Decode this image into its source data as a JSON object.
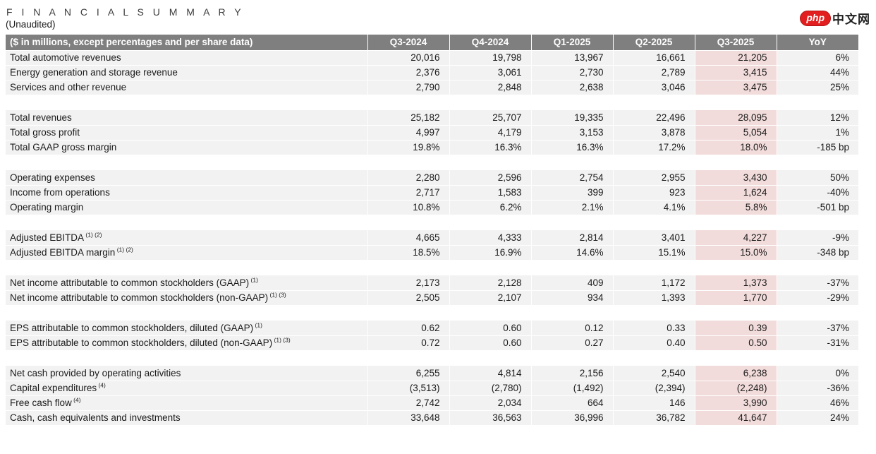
{
  "page": {
    "title": "F I N A N C I A L   S U M M A R Y",
    "subtitle": "(Unaudited)"
  },
  "logo": {
    "badge": "php",
    "text": "中文网",
    "badge_color": "#e31e1e"
  },
  "table": {
    "header": {
      "label": "($ in millions, except percentages and per share data)",
      "columns": [
        "Q3-2024",
        "Q4-2024",
        "Q1-2025",
        "Q2-2025",
        "Q3-2025",
        "YoY"
      ]
    },
    "highlight_column": "Q3-2025",
    "colors": {
      "header_bg": "#7f7f7f",
      "header_text": "#ffffff",
      "row_bg": "#f2f2f2",
      "highlight_bg": "#f2dcdb"
    },
    "sections": [
      {
        "rows": [
          {
            "label": "Total automotive revenues",
            "sup": "",
            "values": [
              "20,016",
              "19,798",
              "13,967",
              "16,661",
              "21,205",
              "6%"
            ]
          },
          {
            "label": "Energy generation and storage revenue",
            "sup": "",
            "values": [
              "2,376",
              "3,061",
              "2,730",
              "2,789",
              "3,415",
              "44%"
            ]
          },
          {
            "label": "Services and other revenue",
            "sup": "",
            "values": [
              "2,790",
              "2,848",
              "2,638",
              "3,046",
              "3,475",
              "25%"
            ]
          }
        ]
      },
      {
        "rows": [
          {
            "label": "Total revenues",
            "sup": "",
            "values": [
              "25,182",
              "25,707",
              "19,335",
              "22,496",
              "28,095",
              "12%"
            ]
          },
          {
            "label": "Total gross profit",
            "sup": "",
            "values": [
              "4,997",
              "4,179",
              "3,153",
              "3,878",
              "5,054",
              "1%"
            ]
          },
          {
            "label": "Total GAAP gross margin",
            "sup": "",
            "values": [
              "19.8%",
              "16.3%",
              "16.3%",
              "17.2%",
              "18.0%",
              "-185 bp"
            ]
          }
        ]
      },
      {
        "rows": [
          {
            "label": "Operating expenses",
            "sup": "",
            "values": [
              "2,280",
              "2,596",
              "2,754",
              "2,955",
              "3,430",
              "50%"
            ]
          },
          {
            "label": "Income from operations",
            "sup": "",
            "values": [
              "2,717",
              "1,583",
              "399",
              "923",
              "1,624",
              "-40%"
            ]
          },
          {
            "label": "Operating margin",
            "sup": "",
            "values": [
              "10.8%",
              "6.2%",
              "2.1%",
              "4.1%",
              "5.8%",
              "-501 bp"
            ]
          }
        ]
      },
      {
        "rows": [
          {
            "label": "Adjusted EBITDA",
            "sup": "(1) (2)",
            "values": [
              "4,665",
              "4,333",
              "2,814",
              "3,401",
              "4,227",
              "-9%"
            ]
          },
          {
            "label": "Adjusted EBITDA margin",
            "sup": "(1) (2)",
            "values": [
              "18.5%",
              "16.9%",
              "14.6%",
              "15.1%",
              "15.0%",
              "-348 bp"
            ]
          }
        ]
      },
      {
        "rows": [
          {
            "label": "Net income attributable to common stockholders (GAAP)",
            "sup": "(1)",
            "values": [
              "2,173",
              "2,128",
              "409",
              "1,172",
              "1,373",
              "-37%"
            ]
          },
          {
            "label": "Net income attributable to common stockholders (non-GAAP)",
            "sup": "(1) (3)",
            "values": [
              "2,505",
              "2,107",
              "934",
              "1,393",
              "1,770",
              "-29%"
            ]
          }
        ]
      },
      {
        "rows": [
          {
            "label": "EPS attributable to common stockholders, diluted (GAAP)",
            "sup": "(1)",
            "values": [
              "0.62",
              "0.60",
              "0.12",
              "0.33",
              "0.39",
              "-37%"
            ]
          },
          {
            "label": "EPS attributable to common stockholders, diluted (non-GAAP)",
            "sup": "(1) (3)",
            "values": [
              "0.72",
              "0.60",
              "0.27",
              "0.40",
              "0.50",
              "-31%"
            ]
          }
        ]
      },
      {
        "rows": [
          {
            "label": "Net cash provided by operating activities",
            "sup": "",
            "values": [
              "6,255",
              "4,814",
              "2,156",
              "2,540",
              "6,238",
              "0%"
            ]
          },
          {
            "label": "Capital expenditures",
            "sup": "(4)",
            "values": [
              "(3,513)",
              "(2,780)",
              "(1,492)",
              "(2,394)",
              "(2,248)",
              "-36%"
            ]
          },
          {
            "label": "Free cash flow",
            "sup": "(4)",
            "values": [
              "2,742",
              "2,034",
              "664",
              "146",
              "3,990",
              "46%"
            ]
          },
          {
            "label": "Cash, cash equivalents and investments",
            "sup": "",
            "values": [
              "33,648",
              "36,563",
              "36,996",
              "36,782",
              "41,647",
              "24%"
            ]
          }
        ]
      }
    ]
  }
}
